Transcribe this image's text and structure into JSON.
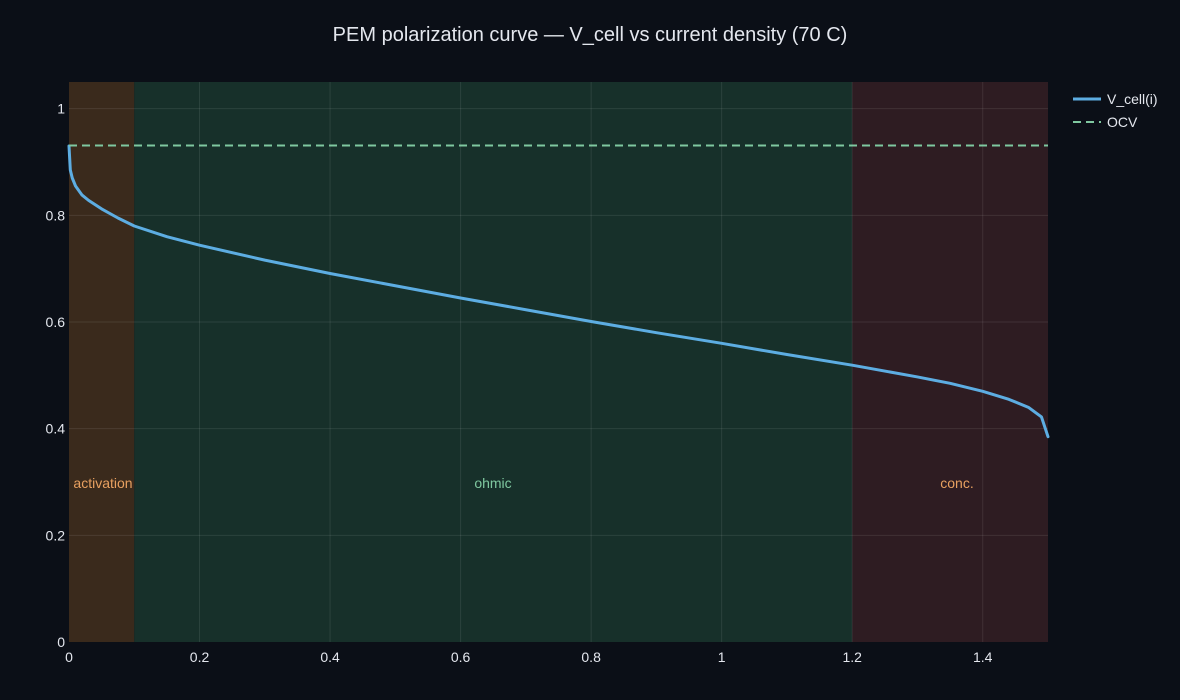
{
  "chart_data": {
    "type": "line",
    "title": "PEM polarization curve — V_cell vs current density (70 C)",
    "xlabel": "",
    "ylabel": "",
    "xlim": [
      0,
      1.5
    ],
    "ylim": [
      0,
      1.05
    ],
    "x_ticks": [
      0,
      0.2,
      0.4,
      0.6,
      0.8,
      1,
      1.2,
      1.4
    ],
    "y_ticks": [
      0,
      0.2,
      0.4,
      0.6,
      0.8,
      1
    ],
    "x_tick_labels": [
      "0",
      "0.2",
      "0.4",
      "0.6",
      "0.8",
      "1",
      "1.2",
      "1.4"
    ],
    "y_tick_labels": [
      "0",
      "0.2",
      "0.4",
      "0.6",
      "0.8",
      "1"
    ],
    "grid": true,
    "legend_position": "top-right, outside plot",
    "regions": [
      {
        "label": "activation",
        "x0": 0,
        "x1": 0.1,
        "fill": "#3a2a1c",
        "label_color": "#e8a060"
      },
      {
        "label": "ohmic",
        "x0": 0.1,
        "x1": 1.2,
        "fill": "#17302a",
        "label_color": "#7fc8a0"
      },
      {
        "label": "conc.",
        "x0": 1.2,
        "x1": 1.5,
        "fill": "#2e1c22",
        "label_color": "#e8a060"
      }
    ],
    "series": [
      {
        "name": "V_cell(i)",
        "color": "#5dade2",
        "style": "solid",
        "x": [
          0,
          0.002,
          0.005,
          0.01,
          0.02,
          0.03,
          0.05,
          0.075,
          0.1,
          0.15,
          0.2,
          0.3,
          0.4,
          0.5,
          0.6,
          0.7,
          0.8,
          0.9,
          1.0,
          1.1,
          1.2,
          1.3,
          1.35,
          1.4,
          1.44,
          1.47,
          1.49,
          1.5
        ],
        "y": [
          0.93,
          0.885,
          0.87,
          0.855,
          0.838,
          0.828,
          0.812,
          0.795,
          0.78,
          0.76,
          0.744,
          0.716,
          0.691,
          0.668,
          0.645,
          0.623,
          0.601,
          0.58,
          0.56,
          0.539,
          0.519,
          0.497,
          0.485,
          0.47,
          0.455,
          0.44,
          0.422,
          0.385
        ]
      },
      {
        "name": "OCV",
        "color": "#7fc8a0",
        "style": "dashed",
        "x": [
          0,
          1.5
        ],
        "y": [
          0.931,
          0.931
        ]
      }
    ]
  }
}
